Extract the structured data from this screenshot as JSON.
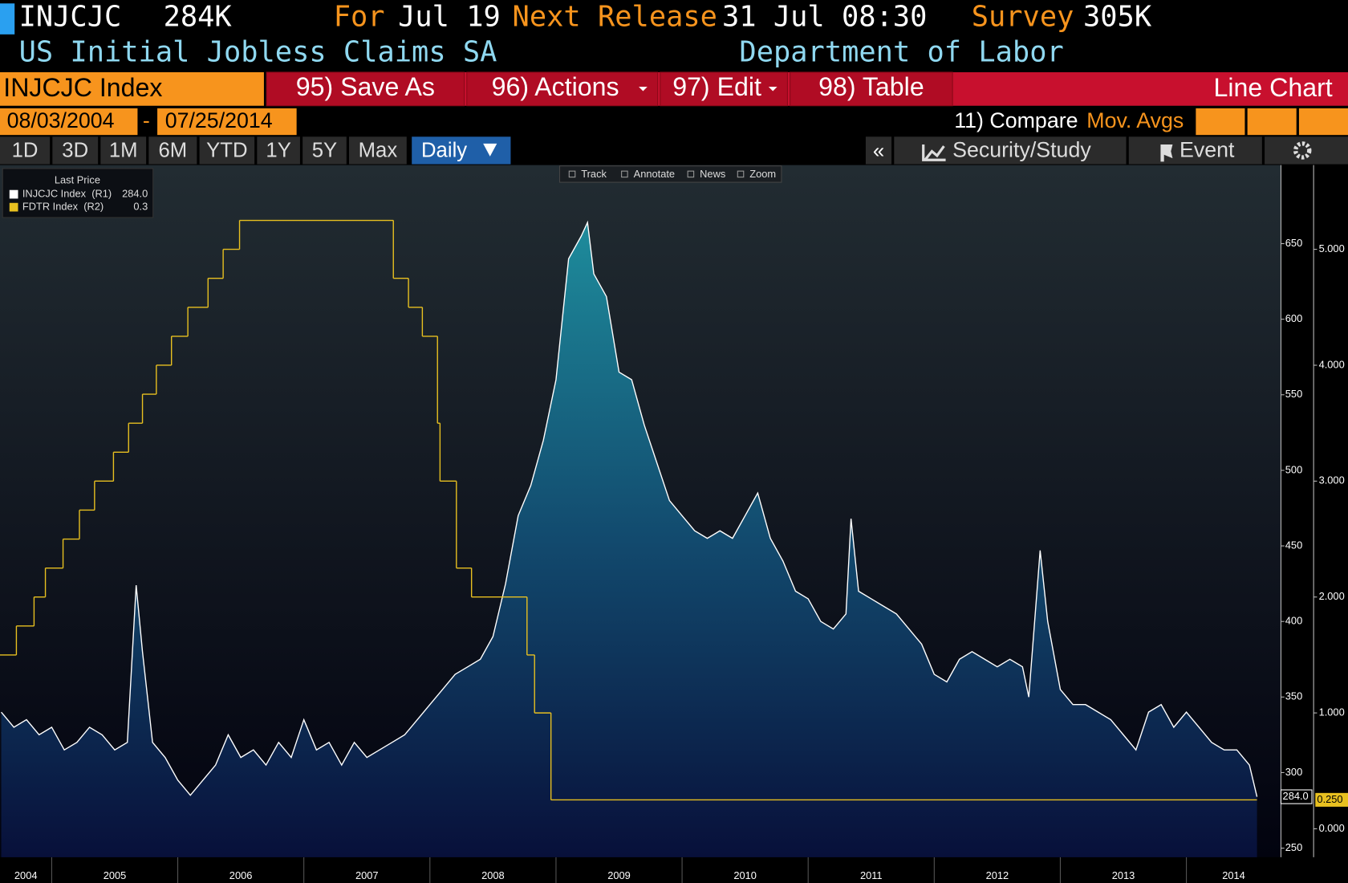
{
  "header": {
    "ticker": "INJCJC",
    "price": "284K",
    "for_label": "For",
    "period": "Jul 19",
    "next_label": "Next Release",
    "next_release": "31 Jul 08:30",
    "survey_label": "Survey",
    "survey": "305K",
    "name": "US Initial Jobless Claims SA",
    "source": "Department of Labor"
  },
  "toolbar": {
    "security": "INJCJC Index",
    "buttons": [
      "95) Save As",
      "96) Actions",
      "97) Edit",
      "98) Table"
    ],
    "view": "Line Chart"
  },
  "dates": {
    "start": "08/03/2004",
    "separator": "-",
    "end": "07/25/2014",
    "compare": "11) Compare",
    "mov_avgs": "Mov. Avgs"
  },
  "ranges": [
    "1D",
    "3D",
    "1M",
    "6M",
    "YTD",
    "1Y",
    "5Y",
    "Max"
  ],
  "frequency": "Daily",
  "side_buttons": {
    "collapse": "«",
    "study": "Security/Study",
    "event": "Event"
  },
  "chart_tools": [
    "Track",
    "Annotate",
    "News",
    "Zoom"
  ],
  "chart_data": {
    "type": "area-line",
    "legend_title": "Last Price",
    "xlim": [
      2004.59,
      2014.75
    ],
    "xticks": [
      {
        "value": 2004,
        "label": "2004"
      },
      {
        "value": 2005,
        "label": "2005"
      },
      {
        "value": 2006,
        "label": "2006"
      },
      {
        "value": 2007,
        "label": "2007"
      },
      {
        "value": 2008,
        "label": "2008"
      },
      {
        "value": 2009,
        "label": "2009"
      },
      {
        "value": 2010,
        "label": "2010"
      },
      {
        "value": 2011,
        "label": "2011"
      },
      {
        "value": 2012,
        "label": "2012"
      },
      {
        "value": 2013,
        "label": "2013"
      },
      {
        "value": 2014,
        "label": "2014"
      }
    ],
    "ylim": [
      244,
      702
    ],
    "yticks": [
      250,
      300,
      350,
      400,
      450,
      500,
      550,
      600,
      650
    ],
    "y2lim": [
      -0.245,
      5.727
    ],
    "y2ticks": [
      {
        "value": 0,
        "label": "0.000"
      },
      {
        "value": 1,
        "label": "1.000"
      },
      {
        "value": 2,
        "label": "2.000"
      },
      {
        "value": 3,
        "label": "3.000"
      },
      {
        "value": 4,
        "label": "4.000"
      },
      {
        "value": 5,
        "label": "5.000"
      }
    ],
    "series": [
      {
        "name": "INJCJC Index  (R1)",
        "legend_value": "284.0",
        "tag": "284.0",
        "color": "#ffffff",
        "style": "area",
        "x": [
          2004.6,
          2004.7,
          2004.8,
          2004.9,
          2005.0,
          2005.1,
          2005.2,
          2005.3,
          2005.4,
          2005.5,
          2005.6,
          2005.67,
          2005.72,
          2005.8,
          2005.9,
          2006.0,
          2006.1,
          2006.2,
          2006.3,
          2006.4,
          2006.5,
          2006.6,
          2006.7,
          2006.8,
          2006.9,
          2007.0,
          2007.1,
          2007.2,
          2007.3,
          2007.4,
          2007.5,
          2007.6,
          2007.7,
          2007.8,
          2007.9,
          2008.0,
          2008.1,
          2008.2,
          2008.3,
          2008.4,
          2008.5,
          2008.6,
          2008.7,
          2008.8,
          2008.9,
          2009.0,
          2009.1,
          2009.2,
          2009.25,
          2009.3,
          2009.4,
          2009.5,
          2009.6,
          2009.7,
          2009.8,
          2009.9,
          2010.0,
          2010.1,
          2010.2,
          2010.3,
          2010.4,
          2010.5,
          2010.6,
          2010.7,
          2010.8,
          2010.9,
          2011.0,
          2011.1,
          2011.2,
          2011.3,
          2011.34,
          2011.4,
          2011.5,
          2011.6,
          2011.7,
          2011.8,
          2011.9,
          2012.0,
          2012.1,
          2012.2,
          2012.3,
          2012.4,
          2012.5,
          2012.6,
          2012.7,
          2012.75,
          2012.84,
          2012.9,
          2013.0,
          2013.1,
          2013.2,
          2013.3,
          2013.4,
          2013.5,
          2013.6,
          2013.7,
          2013.8,
          2013.9,
          2014.0,
          2014.1,
          2014.2,
          2014.3,
          2014.4,
          2014.5,
          2014.56
        ],
        "values": [
          340,
          330,
          335,
          325,
          330,
          315,
          320,
          330,
          325,
          315,
          320,
          424,
          380,
          320,
          310,
          295,
          285,
          295,
          305,
          325,
          310,
          315,
          305,
          320,
          310,
          335,
          315,
          320,
          305,
          320,
          310,
          315,
          320,
          325,
          335,
          345,
          355,
          365,
          370,
          375,
          390,
          425,
          470,
          490,
          520,
          560,
          640,
          655,
          664,
          630,
          615,
          565,
          560,
          530,
          505,
          480,
          470,
          460,
          455,
          460,
          455,
          470,
          485,
          455,
          440,
          420,
          415,
          400,
          395,
          405,
          468,
          420,
          415,
          410,
          405,
          395,
          385,
          365,
          360,
          375,
          380,
          375,
          370,
          375,
          370,
          350,
          447,
          400,
          355,
          345,
          345,
          340,
          335,
          325,
          315,
          340,
          345,
          330,
          340,
          330,
          320,
          315,
          315,
          305,
          284
        ]
      },
      {
        "name": "FDTR Index  (R2)",
        "legend_value": "0.3",
        "tag": "0.250",
        "color": "#e8c020",
        "style": "step",
        "axis": "y2",
        "x": [
          2004.59,
          2004.72,
          2004.86,
          2004.95,
          2005.09,
          2005.22,
          2005.34,
          2005.49,
          2005.61,
          2005.72,
          2005.83,
          2005.95,
          2006.08,
          2006.24,
          2006.36,
          2006.49,
          2007.71,
          2007.83,
          2007.94,
          2008.06,
          2008.08,
          2008.21,
          2008.33,
          2008.77,
          2008.83,
          2008.96,
          2014.56
        ],
        "values": [
          1.5,
          1.75,
          2.0,
          2.25,
          2.5,
          2.75,
          3.0,
          3.25,
          3.5,
          3.75,
          4.0,
          4.25,
          4.5,
          4.75,
          5.0,
          5.25,
          4.75,
          4.5,
          4.25,
          3.5,
          3.0,
          2.25,
          2.0,
          1.5,
          1.0,
          0.25,
          0.25
        ]
      }
    ]
  }
}
